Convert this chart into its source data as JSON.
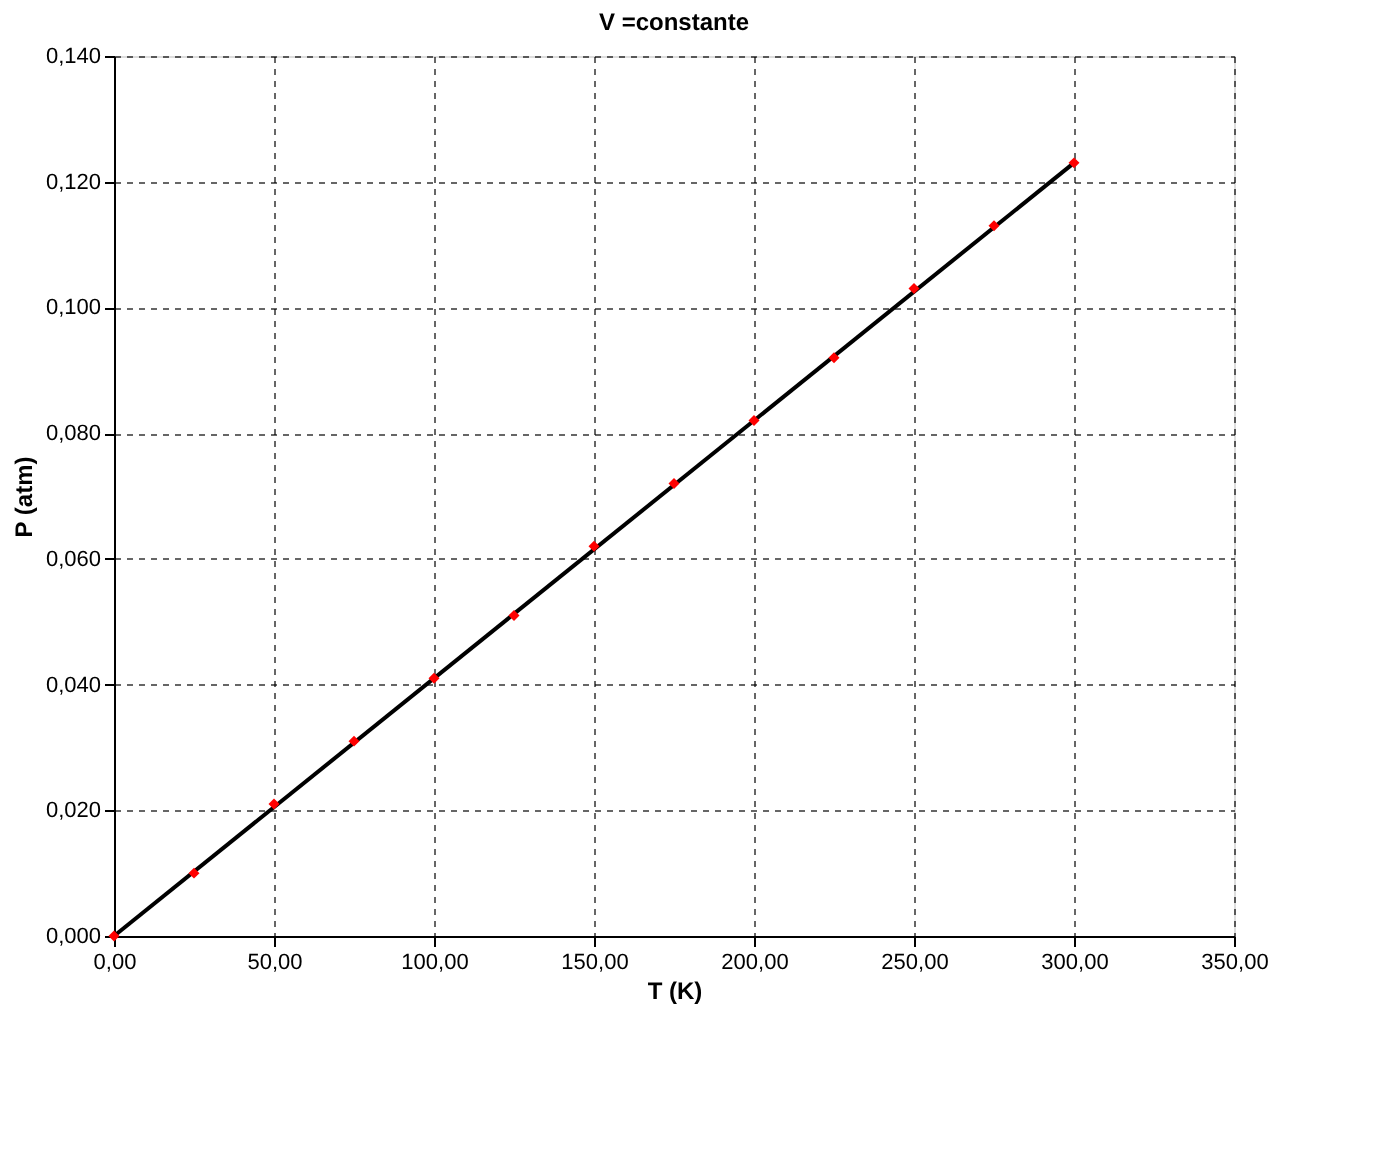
{
  "chart_data": {
    "type": "scatter",
    "title": "V =constante",
    "xlabel": "T (K)",
    "ylabel": "P (atm)",
    "x": [
      0,
      25,
      50,
      75,
      100,
      125,
      150,
      175,
      200,
      225,
      250,
      275,
      300
    ],
    "series": [
      {
        "type": "line",
        "color": "#000000",
        "x": [
          0,
          300
        ],
        "values": [
          0,
          0.123
        ]
      },
      {
        "color": "#ff0000",
        "values": [
          0,
          0.01,
          0.021,
          0.031,
          0.041,
          0.051,
          0.062,
          0.072,
          0.082,
          0.092,
          0.103,
          0.113,
          0.123
        ],
        "marker": "diamond"
      }
    ],
    "xlim": [
      0,
      350
    ],
    "ylim": [
      0,
      0.14
    ],
    "xticks": [
      {
        "value": 0,
        "label": "0,00"
      },
      {
        "value": 50,
        "label": "50,00"
      },
      {
        "value": 100,
        "label": "100,00"
      },
      {
        "value": 150,
        "label": "150,00"
      },
      {
        "value": 200,
        "label": "200,00"
      },
      {
        "value": 250,
        "label": "250,00"
      },
      {
        "value": 300,
        "label": "300,00"
      },
      {
        "value": 350,
        "label": "350,00"
      }
    ],
    "yticks": [
      {
        "value": 0,
        "label": "0,000"
      },
      {
        "value": 0.02,
        "label": "0,020"
      },
      {
        "value": 0.04,
        "label": "0,040"
      },
      {
        "value": 0.06,
        "label": "0,060"
      },
      {
        "value": 0.08,
        "label": "0,080"
      },
      {
        "value": 0.1,
        "label": "0,100"
      },
      {
        "value": 0.12,
        "label": "0,120"
      },
      {
        "value": 0.14,
        "label": "0,140"
      }
    ],
    "grid": true
  }
}
